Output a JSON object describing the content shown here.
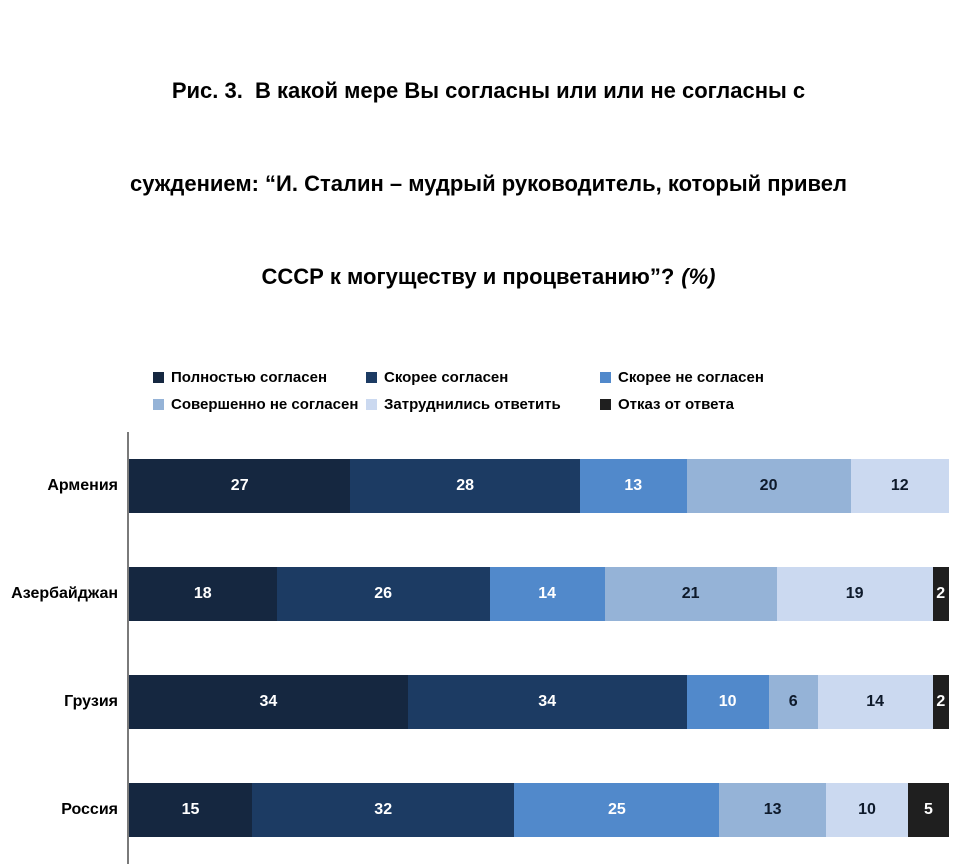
{
  "title": {
    "lines": [
      "Рис. 3.  В какой мере Вы согласны или или не согласны с",
      "суждением: “И. Сталин – мудрый руководитель, который привел",
      "СССР к могуществу и процветанию”?"
    ],
    "suffix_italic": "(%)"
  },
  "chart_data": {
    "type": "bar",
    "orientation": "horizontal",
    "stacked": true,
    "unit": "%",
    "xlim": [
      0,
      100
    ],
    "legend_position": "top",
    "value_labels": "inside",
    "axis_line_color": "#7a7a7a",
    "categories": [
      "Армения",
      "Азербайджан",
      "Грузия",
      "Россия"
    ],
    "series": [
      {
        "name": "Полностью согласен",
        "color": "#152740",
        "label_color": "#ffffff",
        "values": [
          27,
          18,
          34,
          15
        ]
      },
      {
        "name": "Скорее согласен",
        "color": "#1c3b63",
        "label_color": "#ffffff",
        "values": [
          28,
          26,
          34,
          32
        ]
      },
      {
        "name": "Скорее не согласен",
        "color": "#5189cb",
        "label_color": "#ffffff",
        "values": [
          13,
          14,
          10,
          25
        ]
      },
      {
        "name": "Совершенно не согласен",
        "color": "#95b3d7",
        "label_color": "#0e1a2b",
        "values": [
          20,
          21,
          6,
          13
        ]
      },
      {
        "name": "Затруднились ответить",
        "color": "#cbd9f0",
        "label_color": "#0e1a2b",
        "values": [
          12,
          19,
          14,
          10
        ]
      },
      {
        "name": "Отказ от ответа",
        "color": "#1f1f1f",
        "label_color": "#ffffff",
        "values": [
          0,
          2,
          2,
          5
        ]
      }
    ]
  }
}
